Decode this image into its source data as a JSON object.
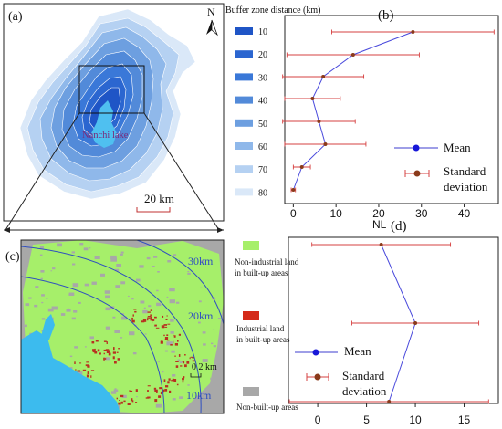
{
  "panel_labels": {
    "a": "(a)",
    "b": "(b)",
    "c": "(c)",
    "d": "(d)"
  },
  "map_a": {
    "north": "N",
    "lake_label": "Nanchi lake",
    "scale_label": "20 km"
  },
  "buffer_legend": {
    "title": "Buffer zone distance  (km)",
    "items": [
      {
        "label": "10",
        "color": "#1f55c6"
      },
      {
        "label": "20",
        "color": "#2b66d0"
      },
      {
        "label": "30",
        "color": "#3a78d8"
      },
      {
        "label": "40",
        "color": "#528ad9"
      },
      {
        "label": "50",
        "color": "#6d9fe0"
      },
      {
        "label": "60",
        "color": "#8fb8ea"
      },
      {
        "label": "70",
        "color": "#b5d1f2"
      },
      {
        "label": "80",
        "color": "#dae8f8"
      }
    ]
  },
  "map_c": {
    "ring_labels": [
      "30km",
      "20km",
      "10km"
    ],
    "scale_label": "0  2 km"
  },
  "land_legend": {
    "items": [
      {
        "label": "Non-industrial land in built-up areas",
        "color": "#a6ef6a"
      },
      {
        "label": "Industrial land in built-up areas",
        "color": "#d42a1a"
      },
      {
        "label": "Non-built-up areas",
        "color": "#a8a8a8"
      }
    ]
  },
  "chart_data": [
    {
      "panel": "(b)",
      "type": "line",
      "orientation": "horizontal",
      "xlabel": "NL",
      "xticks": [
        "0",
        "10",
        "20",
        "30",
        "40"
      ],
      "xlim": [
        -2,
        48
      ],
      "y_categories": [
        "10",
        "20",
        "30",
        "40",
        "50",
        "60",
        "70",
        "80"
      ],
      "series": [
        {
          "name": "Mean",
          "values": [
            28,
            14,
            7,
            4.5,
            6,
            7.5,
            2,
            0
          ],
          "std": [
            19,
            15.5,
            9.5,
            6.5,
            8.5,
            9.5,
            2,
            0.5
          ]
        }
      ],
      "legend": {
        "mean": "Mean",
        "std": "Standard deviation",
        "position": "right"
      }
    },
    {
      "panel": "(d)",
      "type": "line",
      "orientation": "horizontal",
      "xticks": [
        "0",
        "5",
        "10",
        "15"
      ],
      "xlim": [
        -3,
        18.5
      ],
      "y_categories": [
        "Non-industrial land",
        "Industrial land",
        "Non-built-up areas"
      ],
      "series": [
        {
          "name": "Mean",
          "values": [
            6.5,
            10,
            7.3
          ],
          "std": [
            7.1,
            6.5,
            10.2
          ]
        }
      ],
      "legend": {
        "mean": "Mean",
        "std": "Standard deviation",
        "position": "bottom-left"
      }
    }
  ]
}
